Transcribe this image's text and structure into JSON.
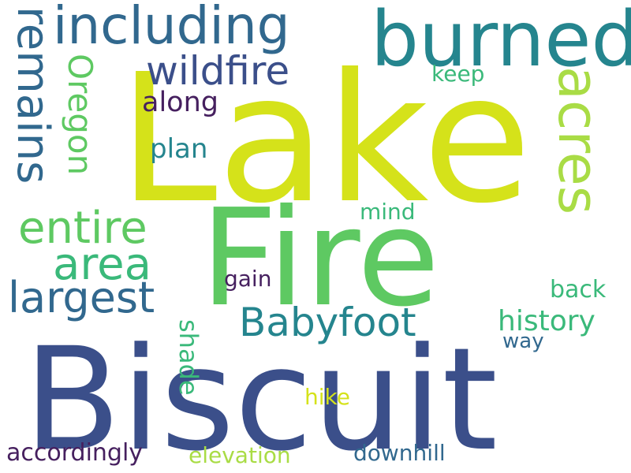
{
  "palette": {
    "navy": "#3b4f8a",
    "purple": "#46205f",
    "blue": "#31688e",
    "teal": "#25858e",
    "green": "#3ab97a",
    "lime": "#5ec962",
    "chartreuse": "#a9dc45",
    "yellow": "#d5e21a"
  },
  "words": {
    "lake": "Lake",
    "fire": "Fire",
    "biscuit": "Biscuit",
    "burned": "burned",
    "including": "including",
    "wildfire": "wildfire",
    "remains": "remains",
    "acres": "acres",
    "oregon": "Oregon",
    "along": "along",
    "keep": "keep",
    "plan": "plan",
    "entire": "entire",
    "area": "area",
    "mind": "mind",
    "largest": "largest",
    "babyfoot": "Babyfoot",
    "gain": "gain",
    "back": "back",
    "history": "history",
    "way": "way",
    "shade": "shade",
    "hike": "hike",
    "accordingly": "accordingly",
    "elevation": "elevation",
    "downhill": "downhill"
  }
}
